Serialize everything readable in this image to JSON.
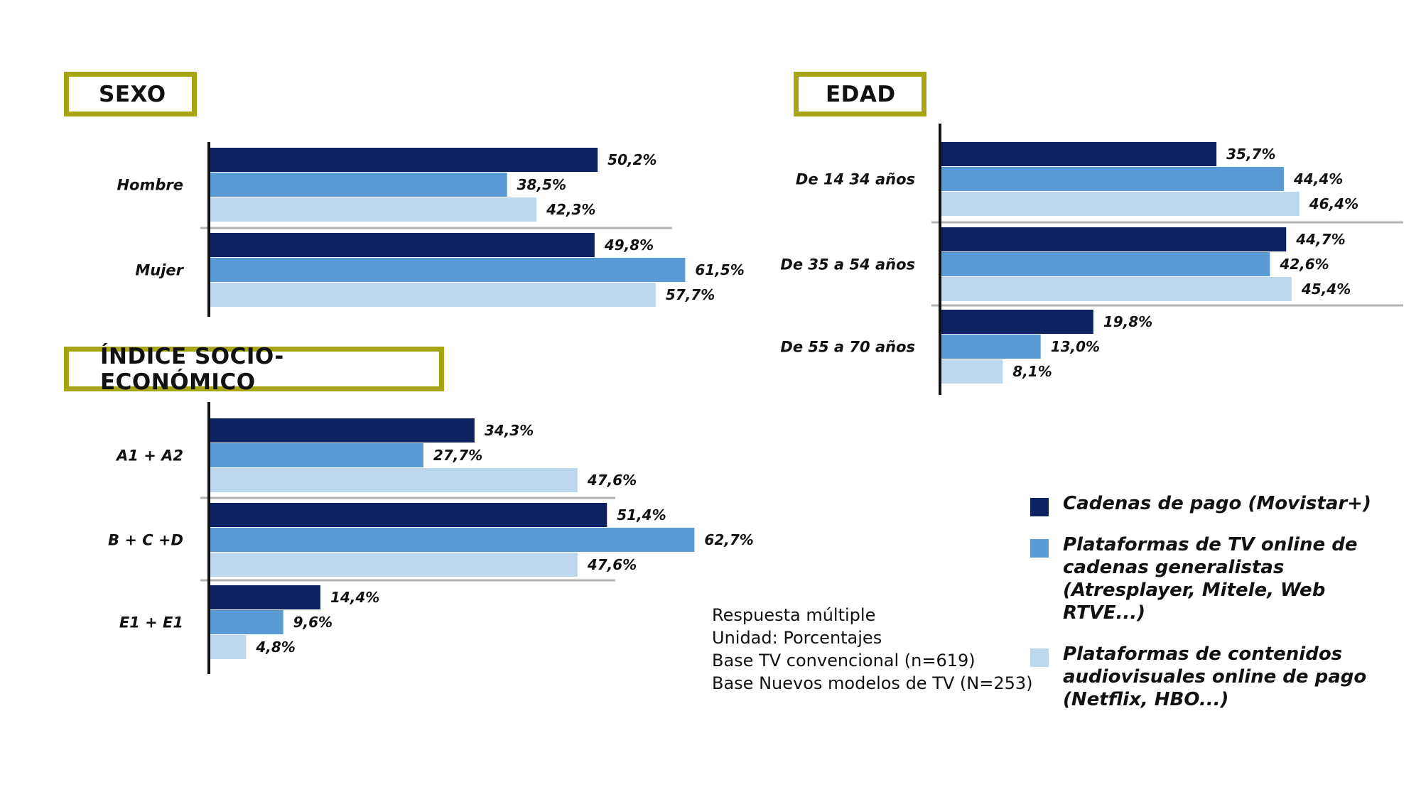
{
  "colors": {
    "accent_border": "#a8a515",
    "series": [
      "#0d2260",
      "#5b9bd5",
      "#bdd7ee"
    ]
  },
  "legend": {
    "items": [
      {
        "label": "Cadenas de pago (Movistar+)",
        "color": "#0d2260"
      },
      {
        "label": "Plataformas de TV online de cadenas generalistas (Atresplayer, Mitele, Web RTVE...)",
        "color": "#5b9bd5"
      },
      {
        "label": "Plataformas de contenidos audiovisuales online de pago (Netflix, HBO...)",
        "color": "#bdd7ee"
      }
    ]
  },
  "notes": [
    "Respuesta múltiple",
    "Unidad: Porcentajes",
    "Base TV convencional (n=619)",
    "Base Nuevos modelos de TV (N=253)"
  ],
  "chart_data": [
    {
      "type": "bar",
      "orientation": "horizontal",
      "title": "SEXO",
      "categories": [
        "Hombre",
        "Mujer"
      ],
      "series": [
        {
          "name": "Cadenas de pago (Movistar+)",
          "values": [
            50.2,
            49.8
          ],
          "labels": [
            "50,2%",
            "49,8%"
          ]
        },
        {
          "name": "Plataformas de TV online de cadenas generalistas (Atresplayer, Mitele, Web RTVE...)",
          "values": [
            38.5,
            61.5
          ],
          "labels": [
            "38,5%",
            "61,5%"
          ]
        },
        {
          "name": "Plataformas de contenidos audiovisuales online de pago (Netflix, HBO...)",
          "values": [
            42.3,
            57.7
          ],
          "labels": [
            "42,3%",
            "57,7%"
          ]
        }
      ]
    },
    {
      "type": "bar",
      "orientation": "horizontal",
      "title": "ÍNDICE SOCIO-ECONÓMICO",
      "categories": [
        "A1 + A2",
        "B + C +D",
        "E1 + E1"
      ],
      "series": [
        {
          "name": "Cadenas de pago (Movistar+)",
          "values": [
            34.3,
            51.4,
            14.4
          ],
          "labels": [
            "34,3%",
            "51,4%",
            "14,4%"
          ]
        },
        {
          "name": "Plataformas de TV online de cadenas generalistas (Atresplayer, Mitele, Web RTVE...)",
          "values": [
            27.7,
            62.7,
            9.6
          ],
          "labels": [
            "27,7%",
            "62,7%",
            "9,6%"
          ]
        },
        {
          "name": "Plataformas de contenidos audiovisuales online de pago (Netflix, HBO...)",
          "values": [
            47.6,
            47.6,
            4.8
          ],
          "labels": [
            "47,6%",
            "47,6%",
            "4,8%"
          ]
        }
      ]
    },
    {
      "type": "bar",
      "orientation": "horizontal",
      "title": "EDAD",
      "categories": [
        "De 14  34 años",
        "De 35 a 54 años",
        "De 55 a 70 años"
      ],
      "series": [
        {
          "name": "Cadenas de pago (Movistar+)",
          "values": [
            35.7,
            44.7,
            19.8
          ],
          "labels": [
            "35,7%",
            "44,7%",
            "19,8%"
          ]
        },
        {
          "name": "Plataformas de TV online de cadenas generalistas (Atresplayer, Mitele, Web RTVE...)",
          "values": [
            44.4,
            42.6,
            13.0
          ],
          "labels": [
            "44,4%",
            "42,6%",
            "13,0%"
          ]
        },
        {
          "name": "Plataformas de contenidos audiovisuales online de pago (Netflix, HBO...)",
          "values": [
            46.4,
            45.4,
            8.1
          ],
          "labels": [
            "46,4%",
            "45,4%",
            "8,1%"
          ]
        }
      ]
    }
  ]
}
